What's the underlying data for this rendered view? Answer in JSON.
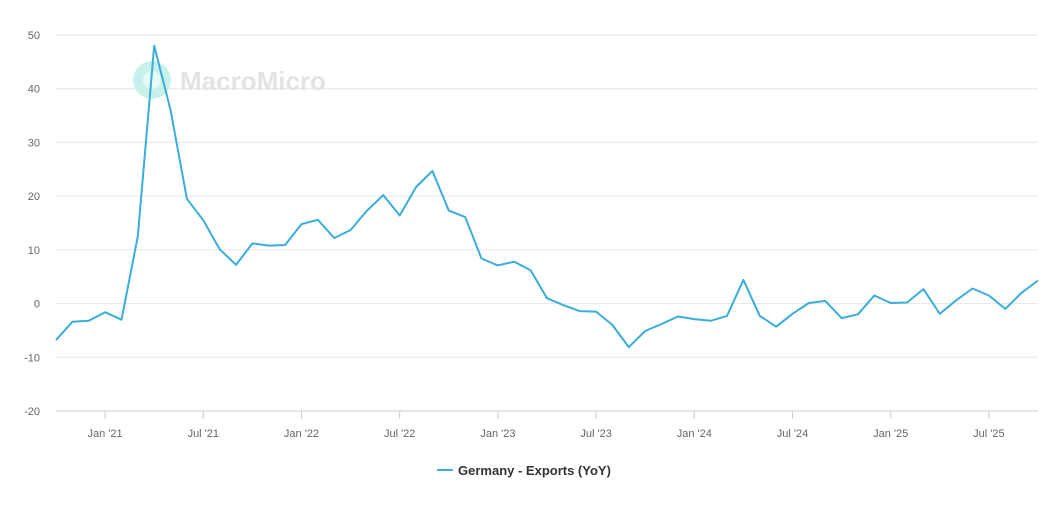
{
  "watermark": {
    "text": "MacroMicro",
    "icon": "macromicro-logo-icon",
    "color": "#bfeee6"
  },
  "chart_data": {
    "type": "line",
    "title": "",
    "xlabel": "",
    "ylabel": "",
    "ylim": [
      -20,
      50
    ],
    "yticks": [
      -20,
      -10,
      0,
      10,
      20,
      30,
      40,
      50
    ],
    "xlim": [
      "2020-10",
      "2025-10"
    ],
    "xticks": [
      {
        "x": "2021-01",
        "label": "Jan '21"
      },
      {
        "x": "2021-07",
        "label": "Jul '21"
      },
      {
        "x": "2022-01",
        "label": "Jan '22"
      },
      {
        "x": "2022-07",
        "label": "Jul '22"
      },
      {
        "x": "2023-01",
        "label": "Jan '23"
      },
      {
        "x": "2023-07",
        "label": "Jul '23"
      },
      {
        "x": "2024-01",
        "label": "Jan '24"
      },
      {
        "x": "2024-07",
        "label": "Jul '24"
      },
      {
        "x": "2025-01",
        "label": "Jan '25"
      },
      {
        "x": "2025-07",
        "label": "Jul '25"
      }
    ],
    "grid": true,
    "legend_position": "bottom-center",
    "series": [
      {
        "name": "Germany - Exports (YoY)",
        "color": "#3aaed8",
        "x": [
          "2020-10",
          "2020-11",
          "2020-12",
          "2021-01",
          "2021-02",
          "2021-03",
          "2021-04",
          "2021-05",
          "2021-06",
          "2021-07",
          "2021-08",
          "2021-09",
          "2021-10",
          "2021-11",
          "2021-12",
          "2022-01",
          "2022-02",
          "2022-03",
          "2022-04",
          "2022-05",
          "2022-06",
          "2022-07",
          "2022-08",
          "2022-09",
          "2022-10",
          "2022-11",
          "2022-12",
          "2023-01",
          "2023-02",
          "2023-03",
          "2023-04",
          "2023-05",
          "2023-06",
          "2023-07",
          "2023-08",
          "2023-09",
          "2023-10",
          "2023-11",
          "2023-12",
          "2024-01",
          "2024-02",
          "2024-03",
          "2024-04",
          "2024-05",
          "2024-06",
          "2024-07",
          "2024-08",
          "2024-09",
          "2024-10",
          "2024-11",
          "2024-12",
          "2025-01",
          "2025-02",
          "2025-03",
          "2025-04",
          "2025-05",
          "2025-06",
          "2025-07",
          "2025-08",
          "2025-09",
          "2025-10"
        ],
        "values": [
          -6.8,
          -3.4,
          -3.2,
          -1.6,
          -3.0,
          12.5,
          48.0,
          36.0,
          19.5,
          15.5,
          10.1,
          7.2,
          11.2,
          10.8,
          10.9,
          14.8,
          15.6,
          12.2,
          13.7,
          17.3,
          20.2,
          16.4,
          21.7,
          24.7,
          17.3,
          16.1,
          8.4,
          7.1,
          7.8,
          6.2,
          1.0,
          -0.3,
          -1.4,
          -1.5,
          -4.0,
          -8.1,
          -5.1,
          -3.8,
          -2.4,
          -2.9,
          -3.2,
          -2.3,
          4.4,
          -2.3,
          -4.3,
          -1.9,
          0.1,
          0.5,
          -2.7,
          -2.0,
          1.5,
          0.1,
          0.2,
          2.7,
          -1.9,
          0.6,
          2.8,
          1.5,
          -1.0,
          2.0,
          4.3
        ]
      }
    ]
  }
}
